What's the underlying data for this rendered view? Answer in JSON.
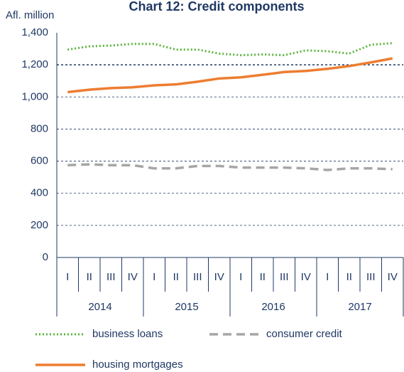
{
  "chart_data": {
    "type": "line",
    "title": "Chart 12: Credit components",
    "y_label": "Afl. million",
    "categories": [
      "I",
      "II",
      "III",
      "IV",
      "I",
      "II",
      "III",
      "IV",
      "I",
      "II",
      "III",
      "IV",
      "I",
      "II",
      "III",
      "IV"
    ],
    "year_groups": [
      "2014",
      "2015",
      "2016",
      "2017"
    ],
    "series": [
      {
        "name": "business loans",
        "color": "#5bb43c",
        "style": "dotted",
        "values": [
          1295,
          1315,
          1320,
          1330,
          1330,
          1295,
          1295,
          1270,
          1260,
          1265,
          1260,
          1290,
          1285,
          1270,
          1325,
          1335
        ]
      },
      {
        "name": "consumer credit",
        "color": "#a6a6a6",
        "style": "dashed",
        "values": [
          575,
          580,
          575,
          575,
          555,
          555,
          570,
          570,
          560,
          560,
          560,
          555,
          545,
          555,
          555,
          550
        ]
      },
      {
        "name": "housing mortgages",
        "color": "#ed7d31",
        "style": "solid",
        "values": [
          1030,
          1045,
          1055,
          1060,
          1072,
          1078,
          1095,
          1115,
          1122,
          1138,
          1155,
          1162,
          1175,
          1192,
          1215,
          1240
        ]
      }
    ],
    "ylim": [
      0,
      1400
    ],
    "yticks": [
      0,
      200,
      400,
      600,
      800,
      {
        "value": 1000,
        "label": "1,000"
      },
      {
        "value": 1200,
        "label": "1,200"
      },
      {
        "value": 1400,
        "label": "1,400"
      }
    ],
    "grid": true
  }
}
